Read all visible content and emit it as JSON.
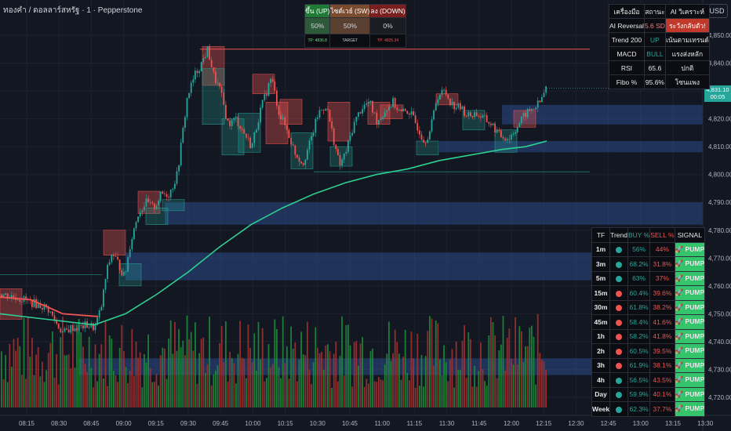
{
  "header": {
    "title": "ทองคำ / ดอลลาร์สหรัฐ · 1 · Pepperstone",
    "currency": "USD"
  },
  "price_badge": {
    "price": "4,831.10",
    "countdown": "00:05"
  },
  "signal_panel": {
    "headers": [
      "ขึ้น (UP)",
      "ไซด์เวย์ (SW)",
      "ลง (DOWN)"
    ],
    "values": [
      "50%",
      "50%",
      "0%"
    ],
    "footer": [
      "TP: 4836.8",
      "TARGET",
      "TP: 4825.34"
    ],
    "colors": [
      "#1e7a34",
      "#7a4b2e",
      "#7a1f1f"
    ]
  },
  "ai_table": {
    "header": [
      "เครื่องมือ",
      "สถานะ",
      "AI วิเคราะห์"
    ],
    "rows": [
      [
        "AI Reversal",
        "5.6 SD",
        "ระวังกลับตัว!"
      ],
      [
        "Trend 200",
        "UP",
        "เน้นตามเทรนด์"
      ],
      [
        "MACD",
        "BULL",
        "แรงส่งหลัก"
      ],
      [
        "RSI",
        "65.6",
        "ปกติ"
      ],
      [
        "Fibo %",
        "95.6%",
        "โซนแพง"
      ]
    ]
  },
  "tf_table": {
    "header": [
      "TF",
      "Trend",
      "BUY %",
      "SELL %",
      "SIGNAL"
    ],
    "rows": [
      {
        "tf": "1m",
        "trend": "up",
        "buy": "56%",
        "sell": "44%",
        "signal": "🚀 PUMP"
      },
      {
        "tf": "3m",
        "trend": "up",
        "buy": "68.2%",
        "sell": "31.8%",
        "signal": "🚀 PUMP"
      },
      {
        "tf": "5m",
        "trend": "up",
        "buy": "63%",
        "sell": "37%",
        "signal": "🚀 PUMP"
      },
      {
        "tf": "15m",
        "trend": "down",
        "buy": "60.4%",
        "sell": "39.6%",
        "signal": "🚀 PUMP"
      },
      {
        "tf": "30m",
        "trend": "down",
        "buy": "61.8%",
        "sell": "38.2%",
        "signal": "🚀 PUMP"
      },
      {
        "tf": "45m",
        "trend": "down",
        "buy": "58.4%",
        "sell": "41.6%",
        "signal": "🚀 PUMP"
      },
      {
        "tf": "1h",
        "trend": "down",
        "buy": "58.2%",
        "sell": "41.8%",
        "signal": "🚀 PUMP"
      },
      {
        "tf": "2h",
        "trend": "down",
        "buy": "60.5%",
        "sell": "39.5%",
        "signal": "🚀 PUMP"
      },
      {
        "tf": "3h",
        "trend": "down",
        "buy": "61.9%",
        "sell": "38.1%",
        "signal": "🚀 PUMP"
      },
      {
        "tf": "4h",
        "trend": "up",
        "buy": "56.5%",
        "sell": "43.5%",
        "signal": "🚀 PUMP"
      },
      {
        "tf": "Day",
        "trend": "up",
        "buy": "59.9%",
        "sell": "40.1%",
        "signal": "🚀 PUMP"
      },
      {
        "tf": "Week",
        "trend": "up",
        "buy": "62.3%",
        "sell": "37.7%",
        "signal": "🚀 PUMP"
      }
    ]
  },
  "colors": {
    "bull": "#26a69a",
    "bear": "#ef5350",
    "ema": "#2ecf8f",
    "zone": "#2a4a8a",
    "pump": "#34c46b"
  },
  "chart_data": {
    "type": "candlestick",
    "ylim": [
      4714,
      4853
    ],
    "y_ticks": [
      "4,850.00",
      "4,840.00",
      "4,830.00",
      "4,820.00",
      "4,810.00",
      "4,800.00",
      "4,790.00",
      "4,780.00",
      "4,770.00",
      "4,760.00",
      "4,750.00",
      "4,740.00",
      "4,730.00",
      "4,720.00"
    ],
    "y_tick_values": [
      4850,
      4840,
      4830,
      4820,
      4810,
      4800,
      4790,
      4780,
      4770,
      4760,
      4750,
      4740,
      4730,
      4720
    ],
    "x_ticks": [
      "08:15",
      "08:30",
      "08:45",
      "09:00",
      "09:15",
      "09:30",
      "09:45",
      "10:00",
      "10:15",
      "10:30",
      "10:45",
      "11:00",
      "11:15",
      "11:30",
      "11:45",
      "12:00",
      "12:15",
      "12:30",
      "12:45",
      "13:00",
      "13:15",
      "13:30"
    ],
    "price_path": [
      [
        0,
        4757
      ],
      [
        20,
        4756
      ],
      [
        40,
        4754
      ],
      [
        60,
        4752
      ],
      [
        72,
        4746
      ],
      [
        80,
        4743
      ],
      [
        90,
        4745
      ],
      [
        100,
        4745
      ],
      [
        110,
        4746
      ],
      [
        120,
        4745
      ],
      [
        128,
        4752
      ],
      [
        135,
        4765
      ],
      [
        142,
        4772
      ],
      [
        150,
        4768
      ],
      [
        158,
        4763
      ],
      [
        165,
        4775
      ],
      [
        175,
        4786
      ],
      [
        185,
        4790
      ],
      [
        195,
        4788
      ],
      [
        205,
        4793
      ],
      [
        215,
        4793
      ],
      [
        225,
        4800
      ],
      [
        232,
        4815
      ],
      [
        238,
        4828
      ],
      [
        248,
        4836
      ],
      [
        256,
        4840
      ],
      [
        264,
        4845
      ],
      [
        272,
        4835
      ],
      [
        280,
        4830
      ],
      [
        290,
        4818
      ],
      [
        300,
        4820
      ],
      [
        310,
        4815
      ],
      [
        320,
        4810
      ],
      [
        330,
        4822
      ],
      [
        345,
        4835
      ],
      [
        355,
        4822
      ],
      [
        365,
        4816
      ],
      [
        375,
        4808
      ],
      [
        385,
        4804
      ],
      [
        395,
        4812
      ],
      [
        405,
        4822
      ],
      [
        415,
        4825
      ],
      [
        425,
        4812
      ],
      [
        432,
        4803
      ],
      [
        440,
        4808
      ],
      [
        450,
        4818
      ],
      [
        460,
        4824
      ],
      [
        470,
        4826
      ],
      [
        480,
        4819
      ],
      [
        490,
        4823
      ],
      [
        500,
        4826
      ],
      [
        510,
        4822
      ],
      [
        520,
        4823
      ],
      [
        530,
        4818
      ],
      [
        540,
        4812
      ],
      [
        548,
        4816
      ],
      [
        556,
        4828
      ],
      [
        566,
        4830
      ],
      [
        576,
        4825
      ],
      [
        586,
        4824
      ],
      [
        596,
        4821
      ],
      [
        606,
        4822
      ],
      [
        616,
        4820
      ],
      [
        626,
        4818
      ],
      [
        636,
        4814
      ],
      [
        648,
        4813
      ],
      [
        660,
        4818
      ],
      [
        670,
        4822
      ],
      [
        680,
        4824
      ],
      [
        688,
        4826
      ],
      [
        695,
        4831
      ]
    ],
    "ema_path": [
      [
        0,
        4750
      ],
      [
        60,
        4748
      ],
      [
        120,
        4746
      ],
      [
        160,
        4750
      ],
      [
        200,
        4757
      ],
      [
        240,
        4765
      ],
      [
        280,
        4774
      ],
      [
        320,
        4782
      ],
      [
        360,
        4788
      ],
      [
        400,
        4793
      ],
      [
        440,
        4797
      ],
      [
        480,
        4800
      ],
      [
        520,
        4802
      ],
      [
        560,
        4805
      ],
      [
        600,
        4807
      ],
      [
        640,
        4809
      ],
      [
        670,
        4810
      ],
      [
        697,
        4812
      ]
    ],
    "volume_seed": 7
  }
}
